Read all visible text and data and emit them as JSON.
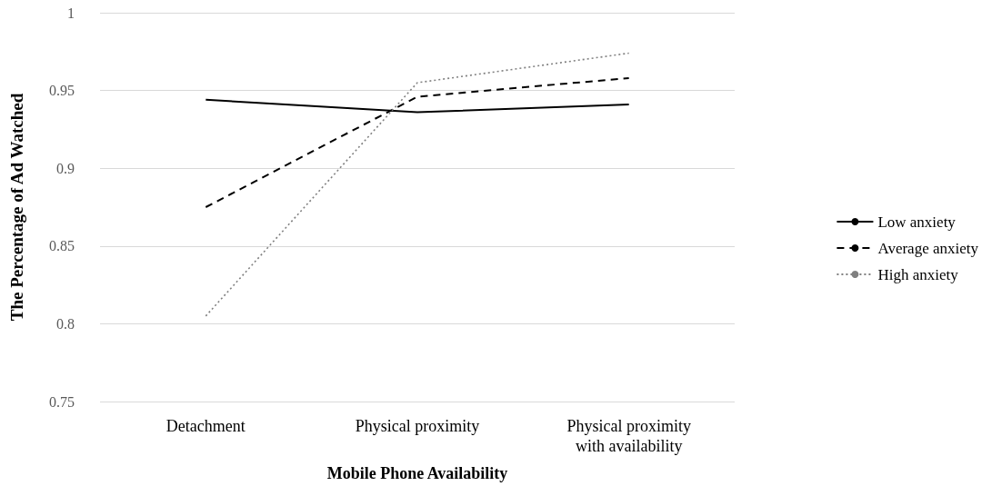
{
  "chart_data": {
    "type": "line",
    "xlabel": "Mobile Phone Availability",
    "ylabel": "The Percentage of Ad Watched",
    "categories": [
      "Detachment",
      "Physical proximity",
      "Physical proximity\nwith availability"
    ],
    "series": [
      {
        "name": "Low anxiety",
        "color": "#000000",
        "line_style": "solid",
        "values": [
          0.944,
          0.936,
          0.941
        ]
      },
      {
        "name": "Average anxiety",
        "color": "#000000",
        "line_style": "dashed",
        "values": [
          0.875,
          0.946,
          0.958
        ]
      },
      {
        "name": "High anxiety",
        "color": "#808080",
        "line_style": "dotted",
        "values": [
          0.805,
          0.955,
          0.974
        ]
      }
    ],
    "ylim": [
      0.75,
      1
    ],
    "yticks": [
      0.75,
      0.8,
      0.85,
      0.9,
      0.95,
      1
    ],
    "grid": "y",
    "legend": "right",
    "marker": "none"
  }
}
